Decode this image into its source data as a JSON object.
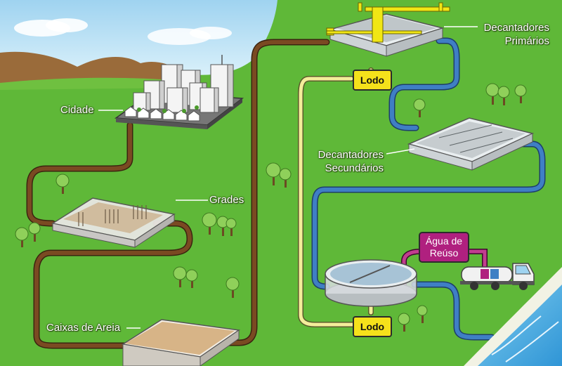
{
  "labels": {
    "cidade": "Cidade",
    "grades": "Grades",
    "caixas_de_areia": "Caixas de Areia",
    "decantadores_primarios_1": "Decantadores",
    "decantadores_primarios_2": "Primários",
    "decantadores_secundarios_1": "Decantadores",
    "decantadores_secundarios_2": "Secundários",
    "lodo_top": "Lodo",
    "lodo_bottom": "Lodo",
    "agua_reuso_1": "Água de",
    "agua_reuso_2": "Reúso"
  },
  "colors": {
    "grass": "#5fb838",
    "sky": "#bfe3f5",
    "mountain": "#9a6b3a",
    "raw_sewage_pipe": "#7a4a22",
    "treated_water_pipe": "#3f7fc4",
    "sludge_pipe": "#f3ed9a",
    "sludge_badge": "#f5e11b",
    "reuse_badge": "#b0207f",
    "sea": "#4db3e6"
  }
}
